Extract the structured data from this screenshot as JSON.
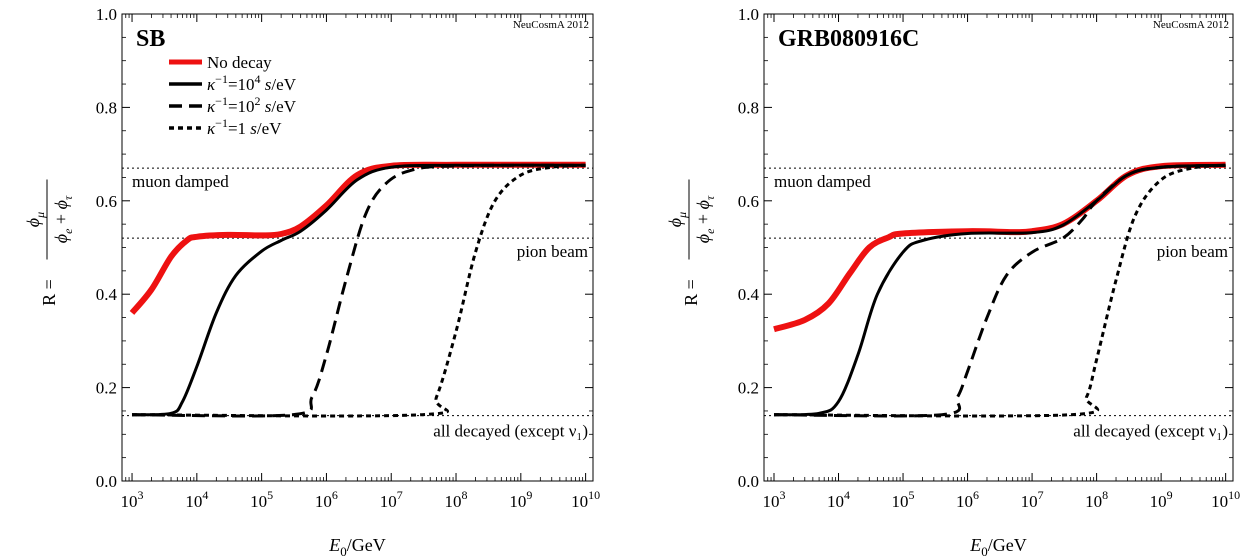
{
  "chart_data": [
    {
      "type": "line",
      "title": "SB",
      "credit": "NeuCosmA 2012",
      "xlabel": {
        "symbol": "E",
        "sub": "0",
        "unit": "/GeV"
      },
      "ylabel": {
        "prefix": "R =",
        "numerator": {
          "sym": "ϕ",
          "sub": "μ"
        },
        "denominator": [
          {
            "sym": "ϕ",
            "sub": "e"
          },
          {
            "sym": "ϕ",
            "sub": "τ"
          }
        ]
      },
      "x_scale": "log10",
      "xlim": [
        700,
        13000000000.0
      ],
      "ylim": [
        0,
        1
      ],
      "x_ticks": [
        3,
        4,
        5,
        6,
        7,
        8,
        9,
        10
      ],
      "y_ticks": [
        "0.0",
        "0.2",
        "0.4",
        "0.6",
        "0.8",
        "1.0"
      ],
      "reference_lines": [
        {
          "y": 0.67,
          "label": "muon damped",
          "label_side": "left"
        },
        {
          "y": 0.52,
          "label": "pion beam",
          "label_side": "right"
        },
        {
          "y": 0.14,
          "label": "all decayed (except ν₁)",
          "label_side": "right"
        }
      ],
      "legend": [
        {
          "label": "No decay",
          "color": "#ee1111",
          "dash": "solid"
        },
        {
          "label_parts": [
            "κ",
            "−1",
            "=10",
            "4",
            " s",
            "/eV"
          ],
          "color": "#000000",
          "dash": "solid"
        },
        {
          "label_parts": [
            "κ",
            "−1",
            "=10",
            "2",
            " s",
            "/eV"
          ],
          "color": "#000000",
          "dash": "dashed"
        },
        {
          "label_parts": [
            "κ",
            "−1",
            "=1",
            "",
            " s",
            "/eV"
          ],
          "color": "#000000",
          "dash": "dotted"
        }
      ],
      "series": [
        {
          "name": "No decay",
          "color": "#ee1111",
          "dash": "solid",
          "width": 6,
          "points": [
            [
              1000.0,
              0.36
            ],
            [
              2000.0,
              0.41
            ],
            [
              4000.0,
              0.48
            ],
            [
              7000.0,
              0.515
            ],
            [
              10000.0,
              0.523
            ],
            [
              30000.0,
              0.527
            ],
            [
              100000.0,
              0.526
            ],
            [
              200000.0,
              0.529
            ],
            [
              400000.0,
              0.545
            ],
            [
              1000000.0,
              0.59
            ],
            [
              3000000.0,
              0.655
            ],
            [
              10000000.0,
              0.675
            ],
            [
              100000000.0,
              0.677
            ],
            [
              10000000000.0,
              0.677
            ]
          ]
        },
        {
          "name": "κ⁻¹=10⁴ s/eV",
          "color": "#000000",
          "dash": "solid",
          "width": 3,
          "points": [
            [
              1000.0,
              0.142
            ],
            [
              4000.0,
              0.145
            ],
            [
              6000.0,
              0.17
            ],
            [
              10000.0,
              0.245
            ],
            [
              20000.0,
              0.36
            ],
            [
              40000.0,
              0.44
            ],
            [
              100000.0,
              0.492
            ],
            [
              200000.0,
              0.515
            ],
            [
              400000.0,
              0.535
            ],
            [
              1000000.0,
              0.58
            ],
            [
              3000000.0,
              0.645
            ],
            [
              10000000.0,
              0.672
            ],
            [
              100000000.0,
              0.676
            ],
            [
              10000000000.0,
              0.676
            ]
          ]
        },
        {
          "name": "κ⁻¹=10² s/eV",
          "color": "#000000",
          "dash": "dashed",
          "width": 3,
          "points": [
            [
              1000.0,
              0.142
            ],
            [
              300000.0,
              0.142
            ],
            [
              600000.0,
              0.18
            ],
            [
              1000000.0,
              0.27
            ],
            [
              2000000.0,
              0.43
            ],
            [
              4000000.0,
              0.57
            ],
            [
              8000000.0,
              0.635
            ],
            [
              20000000.0,
              0.665
            ],
            [
              100000000.0,
              0.675
            ],
            [
              10000000000.0,
              0.676
            ]
          ]
        },
        {
          "name": "κ⁻¹=1 s/eV",
          "color": "#000000",
          "dash": "dotted",
          "width": 3,
          "points": [
            [
              1000.0,
              0.142
            ],
            [
              30000000.0,
              0.142
            ],
            [
              50000000.0,
              0.18
            ],
            [
              100000000.0,
              0.32
            ],
            [
              200000000.0,
              0.49
            ],
            [
              400000000.0,
              0.6
            ],
            [
              1000000000.0,
              0.655
            ],
            [
              3000000000.0,
              0.672
            ],
            [
              10000000000.0,
              0.676
            ]
          ]
        }
      ]
    },
    {
      "type": "line",
      "title": "GRB080916C",
      "credit": "NeuCosmA 2012",
      "xlabel": {
        "symbol": "E",
        "sub": "0",
        "unit": "/GeV"
      },
      "ylabel": {
        "prefix": "R =",
        "numerator": {
          "sym": "ϕ",
          "sub": "μ"
        },
        "denominator": [
          {
            "sym": "ϕ",
            "sub": "e"
          },
          {
            "sym": "ϕ",
            "sub": "τ"
          }
        ]
      },
      "x_scale": "log10",
      "xlim": [
        700,
        13000000000.0
      ],
      "ylim": [
        0,
        1
      ],
      "x_ticks": [
        3,
        4,
        5,
        6,
        7,
        8,
        9,
        10
      ],
      "y_ticks": [
        "0.0",
        "0.2",
        "0.4",
        "0.6",
        "0.8",
        "1.0"
      ],
      "reference_lines": [
        {
          "y": 0.67,
          "label": "muon damped",
          "label_side": "left"
        },
        {
          "y": 0.52,
          "label": "pion beam",
          "label_side": "right"
        },
        {
          "y": 0.14,
          "label": "all decayed (except ν₁)",
          "label_side": "right"
        }
      ],
      "legend": [],
      "series": [
        {
          "name": "No decay",
          "color": "#ee1111",
          "dash": "solid",
          "width": 6,
          "points": [
            [
              1000.0,
              0.325
            ],
            [
              3000.0,
              0.345
            ],
            [
              7000.0,
              0.38
            ],
            [
              15000.0,
              0.445
            ],
            [
              30000.0,
              0.5
            ],
            [
              60000.0,
              0.522
            ],
            [
              100000.0,
              0.53
            ],
            [
              1000000.0,
              0.535
            ],
            [
              5000000.0,
              0.533
            ],
            [
              10000000.0,
              0.535
            ],
            [
              30000000.0,
              0.55
            ],
            [
              100000000.0,
              0.6
            ],
            [
              300000000.0,
              0.655
            ],
            [
              1000000000.0,
              0.674
            ],
            [
              10000000000.0,
              0.677
            ]
          ]
        },
        {
          "name": "κ⁻¹=10⁴ s/eV",
          "color": "#000000",
          "dash": "solid",
          "width": 3,
          "points": [
            [
              1000.0,
              0.142
            ],
            [
              5000.0,
              0.145
            ],
            [
              10000.0,
              0.17
            ],
            [
              20000.0,
              0.27
            ],
            [
              40000.0,
              0.4
            ],
            [
              100000.0,
              0.49
            ],
            [
              200000.0,
              0.515
            ],
            [
              1000000.0,
              0.53
            ],
            [
              10000000.0,
              0.532
            ],
            [
              30000000.0,
              0.548
            ],
            [
              100000000.0,
              0.6
            ],
            [
              300000000.0,
              0.655
            ],
            [
              1000000000.0,
              0.672
            ],
            [
              10000000000.0,
              0.676
            ]
          ]
        },
        {
          "name": "κ⁻¹=10² s/eV",
          "color": "#000000",
          "dash": "dashed",
          "width": 3,
          "points": [
            [
              1000.0,
              0.142
            ],
            [
              400000.0,
              0.142
            ],
            [
              700000.0,
              0.18
            ],
            [
              1000000.0,
              0.235
            ],
            [
              2000000.0,
              0.35
            ],
            [
              4000000.0,
              0.44
            ],
            [
              10000000.0,
              0.49
            ],
            [
              30000000.0,
              0.52
            ],
            [
              60000000.0,
              0.56
            ],
            [
              100000000.0,
              0.6
            ],
            [
              300000000.0,
              0.655
            ],
            [
              1000000000.0,
              0.672
            ],
            [
              10000000000.0,
              0.676
            ]
          ]
        },
        {
          "name": "κ⁻¹=1 s/eV",
          "color": "#000000",
          "dash": "dotted",
          "width": 3,
          "points": [
            [
              1000.0,
              0.142
            ],
            [
              40000000.0,
              0.142
            ],
            [
              70000000.0,
              0.18
            ],
            [
              100000000.0,
              0.26
            ],
            [
              200000000.0,
              0.43
            ],
            [
              400000000.0,
              0.57
            ],
            [
              1000000000.0,
              0.645
            ],
            [
              3000000000.0,
              0.67
            ],
            [
              10000000000.0,
              0.676
            ]
          ]
        }
      ]
    }
  ]
}
